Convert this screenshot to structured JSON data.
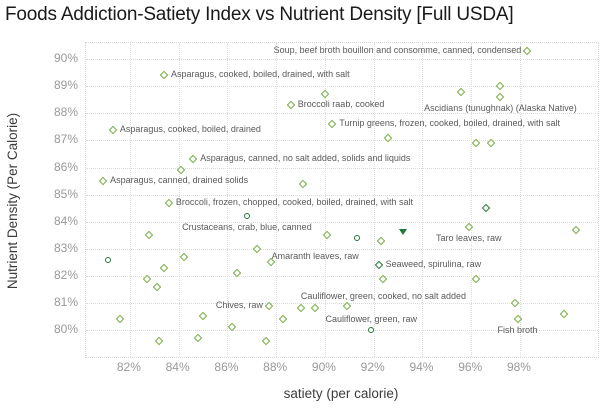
{
  "title": "Foods Addiction-Satiety Index vs Nutrient Density [Full USDA]",
  "colors": {
    "light_green": "#76ad3f",
    "dark_green": "#1e7735",
    "grid": "#dcdcdc",
    "tick_text": "#999999",
    "axis_title_text": "#3c3c3c",
    "label_text": "#5a5a5a",
    "title_text": "#1a1a1a"
  },
  "chart_data": {
    "type": "scatter",
    "title": "Foods Addiction-Satiety Index vs Nutrient Density [Full USDA]",
    "xlabel": "satiety (per calorie)",
    "ylabel": "Nutrient Density (Per Calorie)",
    "tick_suffix": "%",
    "x_ticks": [
      82,
      84,
      86,
      88,
      90,
      92,
      94,
      96,
      98
    ],
    "y_ticks": [
      80,
      81,
      82,
      83,
      84,
      85,
      86,
      87,
      88,
      89,
      90
    ],
    "xlim": [
      80.2,
      101.2
    ],
    "ylim": [
      79.0,
      90.6
    ],
    "grid": true,
    "legend": "none",
    "points": [
      {
        "x": 98.3,
        "y": 90.3,
        "marker": "diamond",
        "label": "Soup, beef broth bouillon and consomme, canned, condensed",
        "label_pos": "left"
      },
      {
        "x": 83.4,
        "y": 89.4,
        "marker": "diamond",
        "label": "Asparagus, cooked, boiled, drained, with salt",
        "label_pos": "right"
      },
      {
        "x": 90.0,
        "y": 88.7,
        "marker": "diamond"
      },
      {
        "x": 88.6,
        "y": 88.3,
        "marker": "diamond",
        "label": "Broccoli raab, cooked",
        "label_pos": "right"
      },
      {
        "x": 95.6,
        "y": 88.8,
        "marker": "diamond"
      },
      {
        "x": 97.2,
        "y": 89.0,
        "marker": "diamond"
      },
      {
        "x": 97.2,
        "y": 88.6,
        "marker": "diamond",
        "label": "Ascidians (tunughnak) (Alaska Native)",
        "label_pos": "below"
      },
      {
        "x": 81.3,
        "y": 87.4,
        "marker": "diamond",
        "label": "Asparagus, cooked, boiled, drained",
        "label_pos": "right"
      },
      {
        "x": 90.3,
        "y": 87.6,
        "marker": "diamond",
        "label": "Turnip greens, frozen, cooked, boiled, drained, with salt",
        "label_pos": "right"
      },
      {
        "x": 92.6,
        "y": 87.1,
        "marker": "diamond"
      },
      {
        "x": 96.2,
        "y": 86.9,
        "marker": "diamond"
      },
      {
        "x": 96.8,
        "y": 86.9,
        "marker": "diamond"
      },
      {
        "x": 84.6,
        "y": 86.3,
        "marker": "diamond",
        "label": "Asparagus, canned, no salt added, solids and liquids",
        "label_pos": "right"
      },
      {
        "x": 84.1,
        "y": 85.9,
        "marker": "diamond"
      },
      {
        "x": 80.9,
        "y": 85.5,
        "marker": "diamond",
        "label": "Asparagus, canned, drained solids",
        "label_pos": "right"
      },
      {
        "x": 89.1,
        "y": 85.4,
        "marker": "diamond"
      },
      {
        "x": 83.6,
        "y": 84.7,
        "marker": "diamond",
        "label": "Broccoli, frozen, chopped, cooked, boiled, drained, with salt",
        "label_pos": "right"
      },
      {
        "x": 86.8,
        "y": 84.2,
        "marker": "circle-dark",
        "label": "Crustaceans, crab, blue, canned",
        "label_pos": "below"
      },
      {
        "x": 96.6,
        "y": 84.5,
        "marker": "diamond-dark"
      },
      {
        "x": 95.9,
        "y": 83.8,
        "marker": "diamond",
        "label": "Taro leaves, raw",
        "label_pos": "below"
      },
      {
        "x": 100.3,
        "y": 83.7,
        "marker": "diamond"
      },
      {
        "x": 90.1,
        "y": 83.5,
        "marker": "diamond"
      },
      {
        "x": 82.8,
        "y": 83.5,
        "marker": "diamond"
      },
      {
        "x": 91.3,
        "y": 83.4,
        "marker": "circle-dark"
      },
      {
        "x": 92.3,
        "y": 83.3,
        "marker": "diamond"
      },
      {
        "x": 93.2,
        "y": 83.6,
        "marker": "triangle-down-dark"
      },
      {
        "x": 87.2,
        "y": 83.0,
        "marker": "diamond",
        "label": "Amaranth leaves, raw",
        "label_pos": "below-right"
      },
      {
        "x": 84.2,
        "y": 82.7,
        "marker": "diamond"
      },
      {
        "x": 81.1,
        "y": 82.6,
        "marker": "circle-dark"
      },
      {
        "x": 87.8,
        "y": 82.5,
        "marker": "diamond"
      },
      {
        "x": 92.2,
        "y": 82.4,
        "marker": "diamond-dark",
        "label": "Seaweed, spirulina, raw",
        "label_pos": "right"
      },
      {
        "x": 83.4,
        "y": 82.3,
        "marker": "diamond"
      },
      {
        "x": 86.4,
        "y": 82.1,
        "marker": "diamond"
      },
      {
        "x": 82.7,
        "y": 81.9,
        "marker": "diamond"
      },
      {
        "x": 83.1,
        "y": 81.6,
        "marker": "diamond"
      },
      {
        "x": 92.4,
        "y": 81.9,
        "marker": "diamond"
      },
      {
        "x": 96.2,
        "y": 81.9,
        "marker": "diamond"
      },
      {
        "x": 87.7,
        "y": 80.9,
        "marker": "diamond",
        "label": "Chives, raw",
        "label_pos": "left"
      },
      {
        "x": 89.0,
        "y": 80.8,
        "marker": "diamond"
      },
      {
        "x": 89.6,
        "y": 80.8,
        "marker": "diamond"
      },
      {
        "x": 90.9,
        "y": 80.9,
        "marker": "diamond",
        "label": "Cauliflower, green, cooked, no salt added",
        "label_pos": "above-right"
      },
      {
        "x": 97.8,
        "y": 81.0,
        "marker": "diamond"
      },
      {
        "x": 99.8,
        "y": 80.6,
        "marker": "diamond"
      },
      {
        "x": 97.9,
        "y": 80.4,
        "marker": "diamond",
        "label": "Fish broth",
        "label_pos": "below"
      },
      {
        "x": 91.9,
        "y": 80.0,
        "marker": "circle-dark",
        "label": "Cauliflower, green, raw",
        "label_pos": "above"
      },
      {
        "x": 81.6,
        "y": 80.4,
        "marker": "diamond"
      },
      {
        "x": 85.0,
        "y": 80.5,
        "marker": "diamond"
      },
      {
        "x": 86.2,
        "y": 80.1,
        "marker": "diamond"
      },
      {
        "x": 88.3,
        "y": 80.4,
        "marker": "diamond"
      },
      {
        "x": 83.2,
        "y": 79.6,
        "marker": "diamond"
      },
      {
        "x": 84.8,
        "y": 79.7,
        "marker": "diamond"
      },
      {
        "x": 87.6,
        "y": 79.6,
        "marker": "diamond"
      }
    ]
  }
}
